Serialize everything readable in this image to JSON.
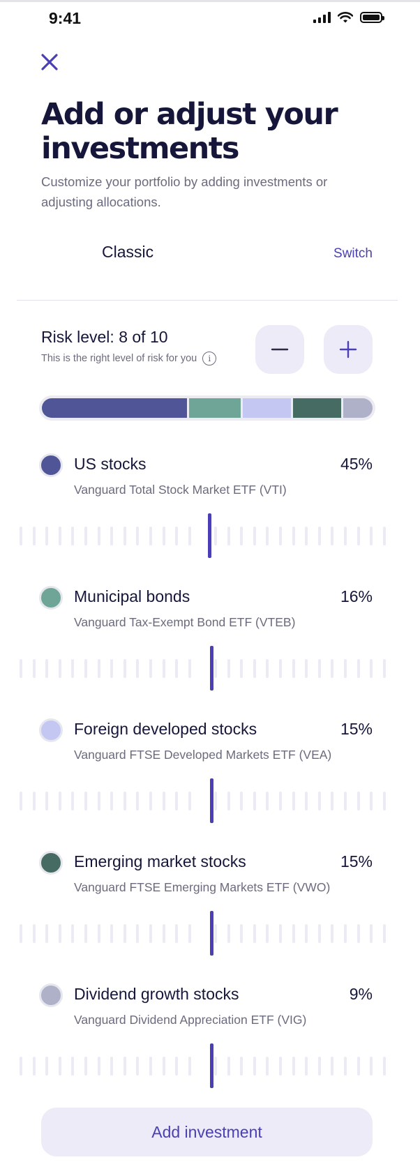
{
  "status_bar": {
    "time": "9:41"
  },
  "header": {
    "close_icon": "close-icon",
    "title": "Add or adjust your investments",
    "subtitle": "Customize your portfolio by adding investments or adjusting allocations."
  },
  "portfolio": {
    "name": "Classic",
    "switch_label": "Switch"
  },
  "risk": {
    "title": "Risk level: 8 of 10",
    "subtitle": "This is the right level of risk for you",
    "level": 8,
    "max": 10,
    "decrease_icon": "minus-icon",
    "increase_icon": "plus-icon"
  },
  "colors": {
    "accent": "#4a3fb4",
    "button_bg": "#ecebf7"
  },
  "holdings": [
    {
      "name": "US stocks",
      "fund": "Vanguard Total Stock Market ETF (VTI)",
      "percent_label": "45%",
      "percent": 45,
      "color": "#4f5597"
    },
    {
      "name": "Municipal bonds",
      "fund": "Vanguard Tax-Exempt Bond ETF (VTEB)",
      "percent_label": "16%",
      "percent": 16,
      "color": "#6fa597"
    },
    {
      "name": "Foreign developed stocks",
      "fund": "Vanguard FTSE Developed Markets ETF (VEA)",
      "percent_label": "15%",
      "percent": 15,
      "color": "#c3c7f2"
    },
    {
      "name": "Emerging market stocks",
      "fund": "Vanguard FTSE Emerging Markets ETF (VWO)",
      "percent_label": "15%",
      "percent": 15,
      "color": "#456b63"
    },
    {
      "name": "Dividend growth stocks",
      "fund": "Vanguard Dividend Appreciation ETF (VIG)",
      "percent_label": "9%",
      "percent": 9,
      "color": "#aeb1c8"
    }
  ],
  "footer": {
    "add_label": "Add investment"
  }
}
